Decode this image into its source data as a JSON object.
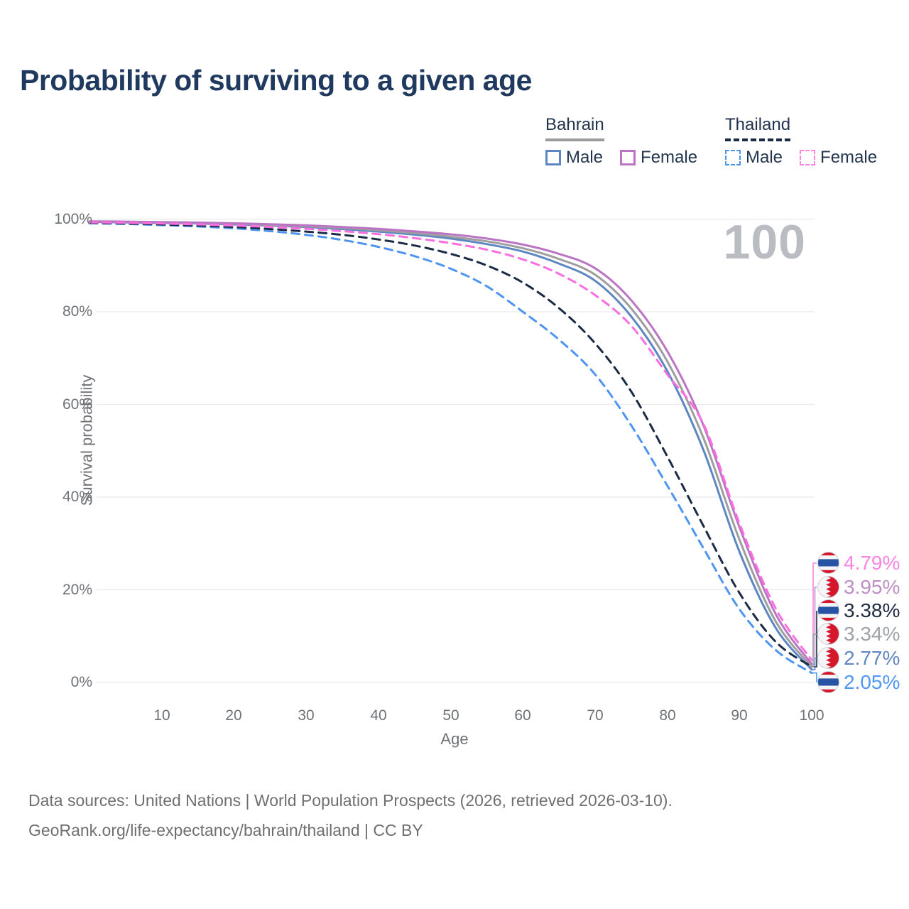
{
  "title": "Probability of surviving to a given age",
  "age_counter": "100",
  "legend": {
    "groups": [
      {
        "id": "bahrain",
        "label": "Bahrain",
        "line_style": "solid",
        "line_color": "#9b9b9b",
        "items": [
          {
            "label": "Male",
            "color": "#5d87c3"
          },
          {
            "label": "Female",
            "color": "#bb74c4"
          }
        ]
      },
      {
        "id": "thailand",
        "label": "Thailand",
        "line_style": "dashed",
        "line_color": "#1b2b45",
        "items": [
          {
            "label": "Male",
            "color": "#4e95f2"
          },
          {
            "label": "Female",
            "color": "#fb87e3"
          }
        ]
      }
    ]
  },
  "axes": {
    "y_label": "Survival probability",
    "x_label": "Age",
    "y_ticks": [
      100,
      80,
      60,
      40,
      20,
      0
    ],
    "x_ticks": [
      10,
      20,
      30,
      40,
      50,
      60,
      70,
      80,
      90,
      100
    ]
  },
  "chart_data": {
    "type": "line",
    "title": "Probability of surviving to a given age",
    "xlabel": "Age",
    "ylabel": "Survival probability",
    "xlim": [
      0,
      100
    ],
    "ylim": [
      0,
      100
    ],
    "grid": "horizontal",
    "legend_position": "top-right",
    "x": [
      0,
      5,
      10,
      15,
      20,
      25,
      30,
      35,
      40,
      45,
      50,
      55,
      60,
      65,
      70,
      75,
      80,
      85,
      90,
      95,
      100
    ],
    "series": [
      {
        "name": "Bahrain Male",
        "country": "Bahrain",
        "sex": "Male",
        "style": "solid",
        "color": "#5d87c3",
        "values": [
          99.4,
          99.3,
          99.2,
          99.05,
          98.85,
          98.6,
          98.3,
          97.85,
          97.3,
          96.65,
          95.8,
          94.6,
          93.0,
          90.4,
          86.7,
          79.0,
          67.2,
          50.2,
          28.2,
          11.8,
          2.77
        ]
      },
      {
        "name": "Bahrain Both sexes",
        "country": "Bahrain",
        "sex": "Both",
        "style": "solid",
        "color": "#9e9e9e",
        "values": [
          99.45,
          99.4,
          99.3,
          99.15,
          99.0,
          98.75,
          98.45,
          98.1,
          97.6,
          97.0,
          96.2,
          95.2,
          93.7,
          91.4,
          88.0,
          80.7,
          69.3,
          52.8,
          30.8,
          13.2,
          3.34
        ]
      },
      {
        "name": "Bahrain Female",
        "country": "Bahrain",
        "sex": "Female",
        "style": "solid",
        "color": "#bb74c4",
        "values": [
          99.5,
          99.45,
          99.35,
          99.25,
          99.1,
          98.9,
          98.65,
          98.3,
          97.9,
          97.35,
          96.7,
          95.8,
          94.5,
          92.5,
          89.4,
          82.5,
          71.5,
          55.5,
          33.5,
          14.8,
          3.95
        ]
      },
      {
        "name": "Thailand Male",
        "country": "Thailand",
        "sex": "Male",
        "style": "dashed",
        "color": "#4e95f2",
        "values": [
          99.1,
          98.95,
          98.7,
          98.4,
          98.0,
          97.4,
          96.6,
          95.5,
          94.0,
          92.0,
          89.3,
          85.5,
          80.0,
          74.0,
          66.5,
          55.5,
          42.5,
          29.0,
          15.8,
          7.0,
          2.05
        ]
      },
      {
        "name": "Thailand Both sexes",
        "country": "Thailand",
        "sex": "Both",
        "style": "dashed",
        "color": "#1b2b45",
        "values": [
          99.2,
          99.05,
          98.85,
          98.6,
          98.3,
          97.85,
          97.3,
          96.6,
          95.6,
          94.3,
          92.5,
          90.0,
          86.3,
          80.8,
          73.2,
          62.8,
          48.8,
          33.8,
          19.3,
          8.8,
          3.38
        ]
      },
      {
        "name": "Thailand Female",
        "country": "Thailand",
        "sex": "Female",
        "style": "dashed",
        "color": "#fb6ee0",
        "values": [
          99.3,
          99.2,
          99.05,
          98.85,
          98.6,
          98.3,
          97.9,
          97.4,
          96.75,
          95.9,
          94.8,
          93.4,
          91.3,
          88.2,
          83.6,
          77.0,
          66.5,
          55.8,
          34.3,
          16.0,
          4.79
        ]
      }
    ]
  },
  "end_labels": [
    {
      "value": "4.79%",
      "series": "Thailand Female",
      "flag": "thailand",
      "color": "#fb84e4"
    },
    {
      "value": "3.95%",
      "series": "Bahrain Female",
      "flag": "bahrain",
      "color": "#bd8fc5"
    },
    {
      "value": "3.38%",
      "series": "Thailand Both sexes",
      "flag": "thailand",
      "color": "#202c42"
    },
    {
      "value": "3.34%",
      "series": "Bahrain Both sexes",
      "flag": "bahrain",
      "color": "#9da3a9"
    },
    {
      "value": "2.77%",
      "series": "Bahrain Male",
      "flag": "bahrain",
      "color": "#6186c0"
    },
    {
      "value": "2.05%",
      "series": "Thailand Male",
      "flag": "thailand",
      "color": "#4f97f5"
    }
  ],
  "flag_colors": {
    "red": "#d6162b",
    "thai_blue": "#2653a3",
    "white": "#f4f5f7"
  },
  "footer": {
    "line1": "Data sources: United Nations | World Population Prospects (2026, retrieved 2026-03-10).",
    "line2": "GeoRank.org/life-expectancy/bahrain/thailand | CC BY"
  }
}
